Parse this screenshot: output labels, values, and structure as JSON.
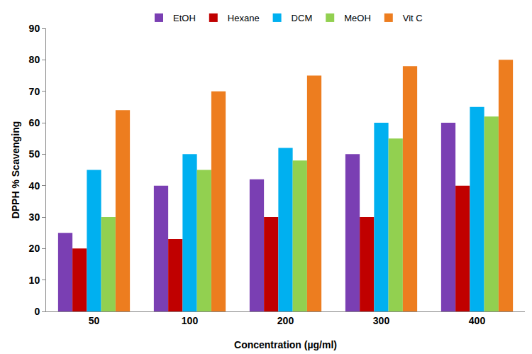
{
  "chart_data": {
    "type": "bar",
    "x_label": "Concentration (µg/ml)",
    "y_label": "DPPH % Scavenging",
    "categories": [
      "50",
      "100",
      "200",
      "300",
      "400"
    ],
    "series": [
      {
        "name": "EtOH",
        "color": "#7a3fb3",
        "values": [
          25,
          40,
          42,
          50,
          60
        ]
      },
      {
        "name": "Hexane",
        "color": "#c00000",
        "values": [
          20,
          23,
          30,
          30,
          40
        ]
      },
      {
        "name": "DCM",
        "color": "#00b0f0",
        "values": [
          45,
          50,
          52,
          60,
          65
        ]
      },
      {
        "name": "MeOH",
        "color": "#92d050",
        "values": [
          30,
          45,
          48,
          55,
          62
        ]
      },
      {
        "name": "Vit C",
        "color": "#ed7d1f",
        "values": [
          64,
          70,
          75,
          78,
          80
        ]
      }
    ],
    "ylim": [
      0,
      90
    ],
    "yticks": [
      0,
      10,
      20,
      30,
      40,
      50,
      60,
      70,
      80,
      90
    ],
    "grid": false,
    "legend": "top"
  }
}
